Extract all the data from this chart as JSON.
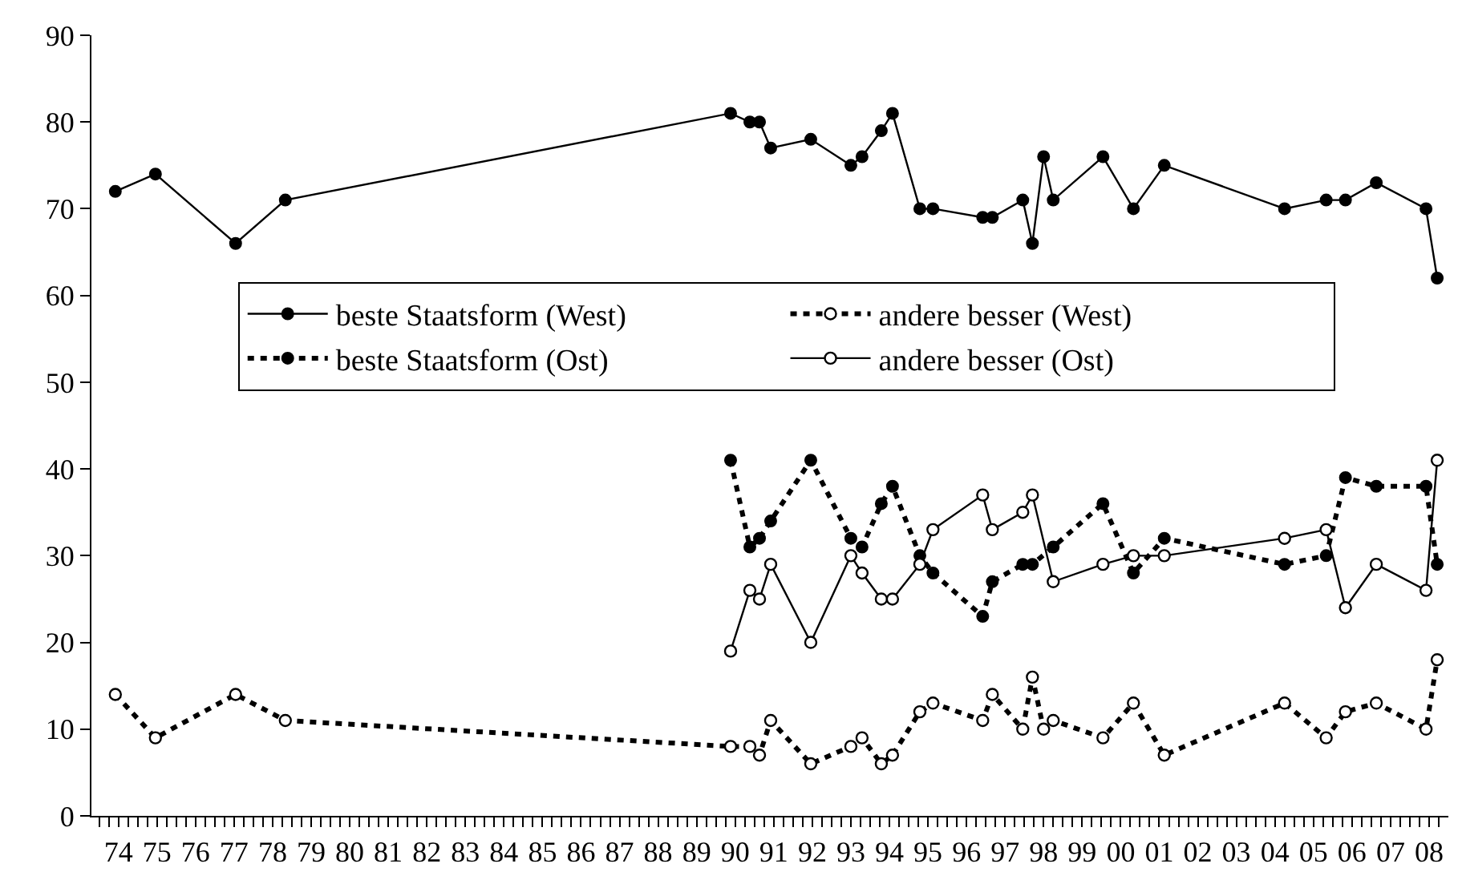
{
  "chart_data": {
    "type": "line",
    "xlim": [
      1973.3,
      2008.5
    ],
    "ylim": [
      0,
      90
    ],
    "yticks": [
      0,
      10,
      20,
      30,
      40,
      50,
      60,
      70,
      80,
      90
    ],
    "xticks": [
      {
        "value": 1973.5,
        "label": null
      },
      {
        "value": 1973.75,
        "label": null
      },
      {
        "value": 1974,
        "label": "74"
      },
      {
        "value": 1974.25,
        "label": null
      },
      {
        "value": 1974.5,
        "label": null
      },
      {
        "value": 1974.75,
        "label": null
      },
      {
        "value": 1975,
        "label": "75"
      },
      {
        "value": 1975.25,
        "label": null
      },
      {
        "value": 1975.5,
        "label": null
      },
      {
        "value": 1975.75,
        "label": null
      },
      {
        "value": 1976,
        "label": "76"
      },
      {
        "value": 1976.25,
        "label": null
      },
      {
        "value": 1976.5,
        "label": null
      },
      {
        "value": 1976.75,
        "label": null
      },
      {
        "value": 1977,
        "label": "77"
      },
      {
        "value": 1977.25,
        "label": null
      },
      {
        "value": 1977.5,
        "label": null
      },
      {
        "value": 1977.75,
        "label": null
      },
      {
        "value": 1978,
        "label": "78"
      },
      {
        "value": 1978.25,
        "label": null
      },
      {
        "value": 1978.5,
        "label": null
      },
      {
        "value": 1978.75,
        "label": null
      },
      {
        "value": 1979,
        "label": "79"
      },
      {
        "value": 1979.25,
        "label": null
      },
      {
        "value": 1979.5,
        "label": null
      },
      {
        "value": 1979.75,
        "label": null
      },
      {
        "value": 1980,
        "label": "80"
      },
      {
        "value": 1980.25,
        "label": null
      },
      {
        "value": 1980.5,
        "label": null
      },
      {
        "value": 1980.75,
        "label": null
      },
      {
        "value": 1981,
        "label": "81"
      },
      {
        "value": 1981.25,
        "label": null
      },
      {
        "value": 1981.5,
        "label": null
      },
      {
        "value": 1981.75,
        "label": null
      },
      {
        "value": 1982,
        "label": "82"
      },
      {
        "value": 1982.25,
        "label": null
      },
      {
        "value": 1982.5,
        "label": null
      },
      {
        "value": 1982.75,
        "label": null
      },
      {
        "value": 1983,
        "label": "83"
      },
      {
        "value": 1983.25,
        "label": null
      },
      {
        "value": 1983.5,
        "label": null
      },
      {
        "value": 1983.75,
        "label": null
      },
      {
        "value": 1984,
        "label": "84"
      },
      {
        "value": 1984.25,
        "label": null
      },
      {
        "value": 1984.5,
        "label": null
      },
      {
        "value": 1984.75,
        "label": null
      },
      {
        "value": 1985,
        "label": "85"
      },
      {
        "value": 1985.25,
        "label": null
      },
      {
        "value": 1985.5,
        "label": null
      },
      {
        "value": 1985.75,
        "label": null
      },
      {
        "value": 1986,
        "label": "86"
      },
      {
        "value": 1986.25,
        "label": null
      },
      {
        "value": 1986.5,
        "label": null
      },
      {
        "value": 1986.75,
        "label": null
      },
      {
        "value": 1987,
        "label": "87"
      },
      {
        "value": 1987.25,
        "label": null
      },
      {
        "value": 1987.5,
        "label": null
      },
      {
        "value": 1987.75,
        "label": null
      },
      {
        "value": 1988,
        "label": "88"
      },
      {
        "value": 1988.25,
        "label": null
      },
      {
        "value": 1988.5,
        "label": null
      },
      {
        "value": 1988.75,
        "label": null
      },
      {
        "value": 1989,
        "label": "89"
      },
      {
        "value": 1989.25,
        "label": null
      },
      {
        "value": 1989.5,
        "label": null
      },
      {
        "value": 1989.75,
        "label": null
      },
      {
        "value": 1990,
        "label": "90"
      },
      {
        "value": 1990.25,
        "label": null
      },
      {
        "value": 1990.5,
        "label": null
      },
      {
        "value": 1990.75,
        "label": null
      },
      {
        "value": 1991,
        "label": "91"
      },
      {
        "value": 1991.25,
        "label": null
      },
      {
        "value": 1991.5,
        "label": null
      },
      {
        "value": 1991.75,
        "label": null
      },
      {
        "value": 1992,
        "label": "92"
      },
      {
        "value": 1992.25,
        "label": null
      },
      {
        "value": 1992.5,
        "label": null
      },
      {
        "value": 1992.75,
        "label": null
      },
      {
        "value": 1993,
        "label": "93"
      },
      {
        "value": 1993.25,
        "label": null
      },
      {
        "value": 1993.5,
        "label": null
      },
      {
        "value": 1993.75,
        "label": null
      },
      {
        "value": 1994,
        "label": "94"
      },
      {
        "value": 1994.25,
        "label": null
      },
      {
        "value": 1994.5,
        "label": null
      },
      {
        "value": 1994.75,
        "label": null
      },
      {
        "value": 1995,
        "label": "95"
      },
      {
        "value": 1995.25,
        "label": null
      },
      {
        "value": 1995.5,
        "label": null
      },
      {
        "value": 1995.75,
        "label": null
      },
      {
        "value": 1996,
        "label": "96"
      },
      {
        "value": 1996.25,
        "label": null
      },
      {
        "value": 1996.5,
        "label": null
      },
      {
        "value": 1996.75,
        "label": null
      },
      {
        "value": 1997,
        "label": "97"
      },
      {
        "value": 1997.25,
        "label": null
      },
      {
        "value": 1997.5,
        "label": null
      },
      {
        "value": 1997.75,
        "label": null
      },
      {
        "value": 1998,
        "label": "98"
      },
      {
        "value": 1998.25,
        "label": null
      },
      {
        "value": 1998.5,
        "label": null
      },
      {
        "value": 1998.75,
        "label": null
      },
      {
        "value": 1999,
        "label": "99"
      },
      {
        "value": 1999.25,
        "label": null
      },
      {
        "value": 1999.5,
        "label": null
      },
      {
        "value": 1999.75,
        "label": null
      },
      {
        "value": 2000,
        "label": "00"
      },
      {
        "value": 2000.25,
        "label": null
      },
      {
        "value": 2000.5,
        "label": null
      },
      {
        "value": 2000.75,
        "label": null
      },
      {
        "value": 2001,
        "label": "01"
      },
      {
        "value": 2001.25,
        "label": null
      },
      {
        "value": 2001.5,
        "label": null
      },
      {
        "value": 2001.75,
        "label": null
      },
      {
        "value": 2002,
        "label": "02"
      },
      {
        "value": 2002.25,
        "label": null
      },
      {
        "value": 2002.5,
        "label": null
      },
      {
        "value": 2002.75,
        "label": null
      },
      {
        "value": 2003,
        "label": "03"
      },
      {
        "value": 2003.25,
        "label": null
      },
      {
        "value": 2003.5,
        "label": null
      },
      {
        "value": 2003.75,
        "label": null
      },
      {
        "value": 2004,
        "label": "04"
      },
      {
        "value": 2004.25,
        "label": null
      },
      {
        "value": 2004.5,
        "label": null
      },
      {
        "value": 2004.75,
        "label": null
      },
      {
        "value": 2005,
        "label": "05"
      },
      {
        "value": 2005.25,
        "label": null
      },
      {
        "value": 2005.5,
        "label": null
      },
      {
        "value": 2005.75,
        "label": null
      },
      {
        "value": 2006,
        "label": "06"
      },
      {
        "value": 2006.25,
        "label": null
      },
      {
        "value": 2006.5,
        "label": null
      },
      {
        "value": 2006.75,
        "label": null
      },
      {
        "value": 2007,
        "label": "07"
      },
      {
        "value": 2007.25,
        "label": null
      },
      {
        "value": 2007.5,
        "label": null
      },
      {
        "value": 2007.75,
        "label": null
      },
      {
        "value": 2008,
        "label": "08"
      },
      {
        "value": 2008.25,
        "label": null
      }
    ],
    "grid": false,
    "legend": "top",
    "series": [
      {
        "name": "beste Staatsform (West)",
        "color": "#000000",
        "line_style": "solid",
        "marker": "circle",
        "x": [
          1973.92,
          1974.96,
          1977.04,
          1978.33,
          1989.88,
          1990.38,
          1990.63,
          1990.92,
          1991.96,
          1993.0,
          1993.29,
          1993.79,
          1994.08,
          1994.79,
          1995.13,
          1996.42,
          1996.67,
          1997.46,
          1997.71,
          1998.0,
          1998.25,
          1999.54,
          2000.33,
          2001.13,
          2004.25,
          2005.33,
          2005.83,
          2006.63,
          2007.92,
          2008.21
        ],
        "values": [
          72,
          74,
          66,
          71,
          81,
          80,
          80,
          77,
          78,
          75,
          76,
          79,
          81,
          70,
          70,
          69,
          69,
          71,
          66,
          76,
          71,
          76,
          70,
          75,
          70,
          71,
          71,
          73,
          70,
          62
        ]
      },
      {
        "name": "andere besser (West)",
        "color": "#000000",
        "line_style": "dashed",
        "marker": "circle-open",
        "x": [
          1973.92,
          1974.96,
          1977.04,
          1978.33,
          1989.88,
          1990.38,
          1990.63,
          1990.92,
          1991.96,
          1993.0,
          1993.29,
          1993.79,
          1994.08,
          1994.79,
          1995.13,
          1996.42,
          1996.67,
          1997.46,
          1997.71,
          1998.0,
          1998.25,
          1999.54,
          2000.33,
          2001.13,
          2004.25,
          2005.33,
          2005.83,
          2006.63,
          2007.92,
          2008.21
        ],
        "values": [
          14,
          9,
          14,
          11,
          8,
          8,
          7,
          11,
          6,
          8,
          9,
          6,
          7,
          12,
          13,
          11,
          14,
          10,
          16,
          10,
          11,
          9,
          13,
          7,
          13,
          9,
          12,
          13,
          10,
          18
        ]
      },
      {
        "name": "beste Staatsform (Ost)",
        "color": "#000000",
        "line_style": "dashed",
        "marker": "circle",
        "x": [
          1989.88,
          1990.38,
          1990.63,
          1990.92,
          1991.96,
          1993.0,
          1993.29,
          1993.79,
          1994.08,
          1994.79,
          1995.13,
          1996.42,
          1996.67,
          1997.46,
          1997.71,
          1998.25,
          1999.54,
          2000.33,
          2001.13,
          2004.25,
          2005.33,
          2005.83,
          2006.63,
          2007.92,
          2008.21
        ],
        "values": [
          41,
          31,
          32,
          34,
          41,
          32,
          31,
          36,
          38,
          30,
          28,
          23,
          27,
          29,
          29,
          31,
          36,
          28,
          32,
          29,
          30,
          39,
          38,
          38,
          29
        ]
      },
      {
        "name": "andere besser (Ost)",
        "color": "#000000",
        "line_style": "solid",
        "marker": "circle-open",
        "x": [
          1989.88,
          1990.38,
          1990.63,
          1990.92,
          1991.96,
          1993.0,
          1993.29,
          1993.79,
          1994.08,
          1994.79,
          1995.13,
          1996.42,
          1996.67,
          1997.46,
          1997.71,
          1998.25,
          1999.54,
          2000.33,
          2001.13,
          2004.25,
          2005.33,
          2005.83,
          2006.63,
          2007.92,
          2008.21
        ],
        "values": [
          19,
          26,
          25,
          29,
          20,
          30,
          28,
          25,
          25,
          29,
          33,
          37,
          33,
          35,
          37,
          27,
          29,
          30,
          30,
          32,
          33,
          24,
          29,
          26,
          41
        ]
      }
    ]
  }
}
